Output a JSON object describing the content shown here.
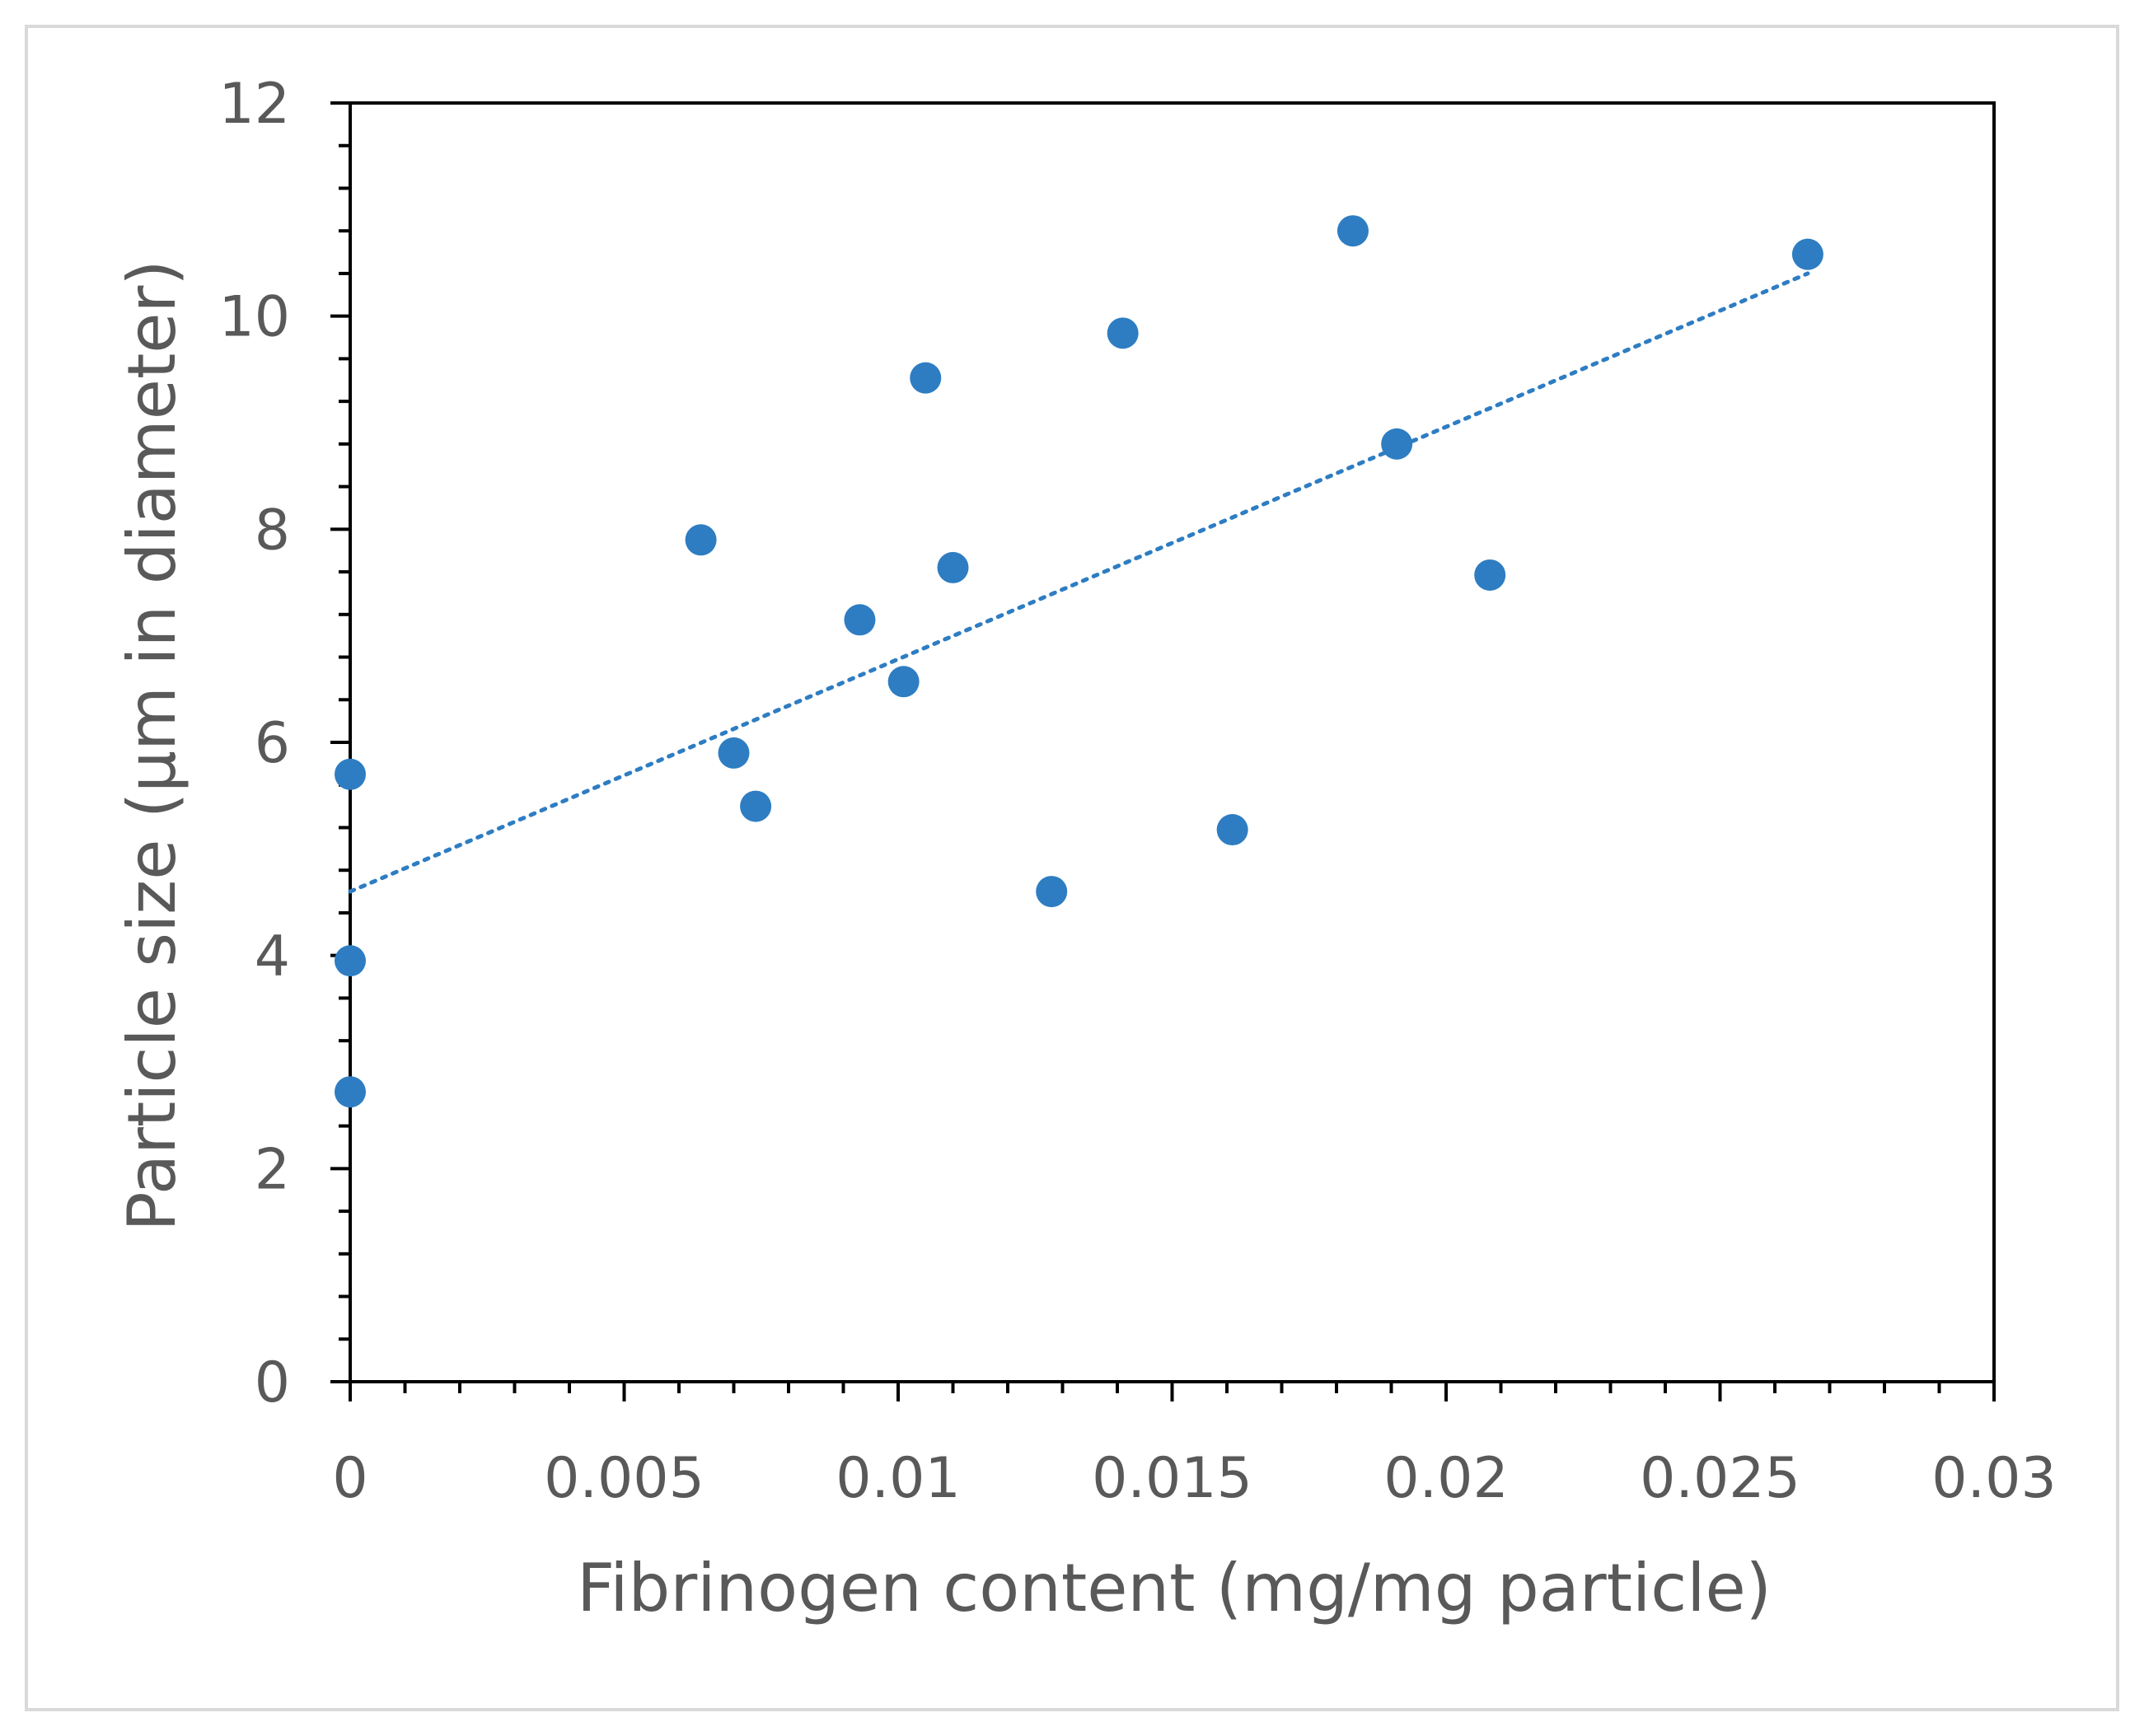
{
  "chart_data": {
    "type": "scatter",
    "title": "",
    "xlabel": "Fibrinogen content (mg/mg particle)",
    "ylabel": "Particle size (µm in diameter)",
    "xlim": [
      0,
      0.03
    ],
    "ylim": [
      0,
      12
    ],
    "x_ticks": [
      0,
      0.005,
      0.01,
      0.015,
      0.02,
      0.025,
      0.03
    ],
    "x_tick_labels": [
      "0",
      "0.005",
      "0.01",
      "0.015",
      "0.02",
      "0.025",
      "0.03"
    ],
    "y_ticks": [
      0,
      2,
      4,
      6,
      8,
      10,
      12
    ],
    "y_tick_labels": [
      "0",
      "2",
      "4",
      "6",
      "8",
      "10",
      "12"
    ],
    "grid": false,
    "legend": "none",
    "series": [
      {
        "color": "#2e7dc2",
        "x": [
          0,
          0,
          0,
          0.0064,
          0.007,
          0.0074,
          0.0093,
          0.0101,
          0.0105,
          0.011,
          0.0128,
          0.0141,
          0.0161,
          0.0183,
          0.0191,
          0.0208,
          0.0266
        ],
        "y": [
          5.7,
          3.95,
          2.72,
          7.9,
          5.9,
          5.4,
          7.15,
          6.57,
          9.42,
          7.64,
          4.6,
          9.84,
          5.18,
          10.8,
          8.8,
          7.57,
          10.58
        ]
      }
    ],
    "trendline": {
      "style": "dotted",
      "color": "#2e7dc2",
      "x": [
        0,
        0.0266
      ],
      "y": [
        4.6,
        10.4
      ]
    }
  }
}
